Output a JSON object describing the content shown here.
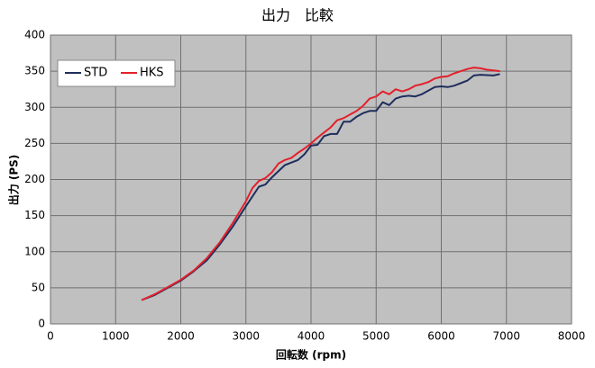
{
  "chart_data": {
    "type": "line",
    "title": "出力　比較",
    "xlabel": "回転数 (rpm)",
    "ylabel": "出力 (PS)",
    "xlim": [
      0,
      8000
    ],
    "xticks": [
      0,
      1000,
      2000,
      3000,
      4000,
      5000,
      6000,
      7000,
      8000
    ],
    "ylim": [
      0,
      400
    ],
    "yticks": [
      0,
      50,
      100,
      150,
      200,
      250,
      300,
      350,
      400
    ],
    "grid": true,
    "legend": "upper left",
    "series": [
      {
        "name": "STD",
        "color": "#1f2d5c",
        "x": [
          1400,
          1600,
          1800,
          2000,
          2200,
          2400,
          2600,
          2800,
          3000,
          3200,
          3300,
          3400,
          3600,
          3800,
          3900,
          4000,
          4100,
          4200,
          4300,
          4400,
          4500,
          4600,
          4700,
          4800,
          4900,
          5000,
          5100,
          5200,
          5300,
          5400,
          5500,
          5600,
          5700,
          5800,
          5900,
          6000,
          6100,
          6200,
          6400,
          6500,
          6600,
          6800,
          6900
        ],
        "values": [
          33,
          40,
          50,
          60,
          73,
          88,
          110,
          135,
          163,
          190,
          193,
          203,
          220,
          227,
          235,
          247,
          248,
          260,
          263,
          263,
          280,
          280,
          287,
          292,
          295,
          295,
          307,
          303,
          312,
          315,
          316,
          315,
          318,
          323,
          328,
          329,
          328,
          330,
          337,
          344,
          345,
          344,
          346
        ]
      },
      {
        "name": "HKS",
        "color": "#e3202b",
        "x": [
          1400,
          1600,
          1800,
          2000,
          2200,
          2400,
          2600,
          2800,
          3000,
          3100,
          3200,
          3300,
          3400,
          3500,
          3600,
          3700,
          3800,
          3900,
          4000,
          4100,
          4200,
          4300,
          4400,
          4500,
          4600,
          4700,
          4800,
          4900,
          5000,
          5100,
          5200,
          5300,
          5400,
          5500,
          5600,
          5700,
          5800,
          5900,
          6000,
          6100,
          6200,
          6300,
          6400,
          6500,
          6600,
          6700,
          6800,
          6900
        ],
        "values": [
          33,
          41,
          51,
          61,
          74,
          91,
          113,
          140,
          170,
          188,
          198,
          202,
          210,
          222,
          227,
          230,
          237,
          243,
          250,
          258,
          265,
          272,
          282,
          285,
          290,
          295,
          302,
          312,
          315,
          322,
          318,
          325,
          322,
          325,
          330,
          332,
          335,
          340,
          342,
          343,
          347,
          350,
          353,
          355,
          354,
          352,
          351,
          350
        ]
      }
    ]
  }
}
